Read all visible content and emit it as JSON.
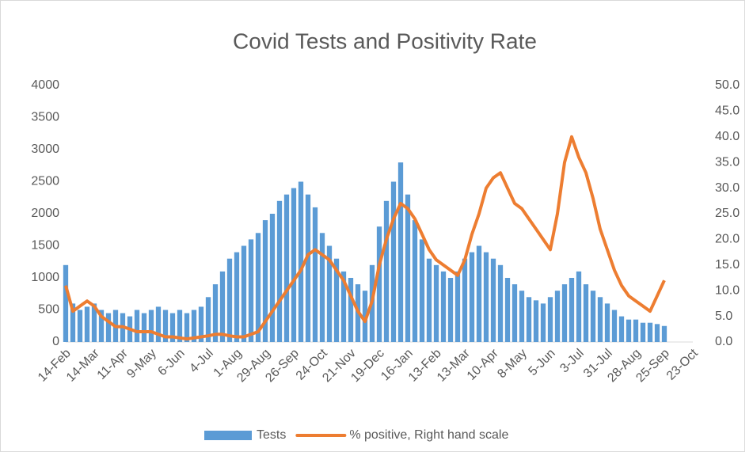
{
  "chart_data": {
    "type": "bar-line",
    "title": "Covid Tests and Positivity Rate",
    "categories": [
      "14-Feb",
      null,
      null,
      null,
      "14-Mar",
      null,
      null,
      null,
      "11-Apr",
      null,
      null,
      null,
      "9-May",
      null,
      null,
      null,
      "6-Jun",
      null,
      null,
      null,
      "4-Jul",
      null,
      null,
      null,
      "1-Aug",
      null,
      null,
      null,
      "29-Aug",
      null,
      null,
      null,
      "26-Sep",
      null,
      null,
      null,
      "24-Oct",
      null,
      null,
      null,
      "21-Nov",
      null,
      null,
      null,
      "19-Dec",
      null,
      null,
      null,
      "16-Jan",
      null,
      null,
      null,
      "13-Feb",
      null,
      null,
      null,
      "13-Mar",
      null,
      null,
      null,
      "10-Apr",
      null,
      null,
      null,
      "8-May",
      null,
      null,
      null,
      "5-Jun",
      null,
      null,
      null,
      "3-Jul",
      null,
      null,
      null,
      "31-Jul",
      null,
      null,
      null,
      "28-Aug",
      null,
      null,
      null,
      "25-Sep",
      null,
      null,
      null,
      "23-Oct"
    ],
    "series": [
      {
        "name": "Tests",
        "type": "bar",
        "color": "#5b9bd5",
        "values": [
          1200,
          600,
          500,
          550,
          600,
          500,
          450,
          500,
          450,
          400,
          500,
          450,
          500,
          550,
          500,
          450,
          500,
          450,
          500,
          550,
          700,
          900,
          1100,
          1300,
          1400,
          1500,
          1600,
          1700,
          1900,
          2000,
          2200,
          2300,
          2400,
          2500,
          2300,
          2100,
          1700,
          1500,
          1300,
          1100,
          1000,
          900,
          800,
          1200,
          1800,
          2200,
          2500,
          2800,
          2300,
          1900,
          1600,
          1300,
          1200,
          1100,
          1000,
          1100,
          1300,
          1400,
          1500,
          1400,
          1300,
          1200,
          1000,
          900,
          800,
          700,
          650,
          600,
          700,
          800,
          900,
          1000,
          1100,
          900,
          800,
          700,
          600,
          500,
          400,
          350,
          350,
          300,
          300,
          280,
          250,
          null,
          null,
          null,
          null
        ]
      },
      {
        "name": "% positive, Right hand scale",
        "type": "line",
        "axis": "y2",
        "color": "#ed7d31",
        "values": [
          11,
          6,
          7,
          8,
          7,
          5,
          4,
          3,
          3,
          2.5,
          2,
          2,
          2,
          1.5,
          1,
          1,
          0.8,
          0.6,
          0.8,
          1,
          1.2,
          1.5,
          1.5,
          1.2,
          1,
          1,
          1.5,
          2,
          4,
          6,
          8,
          10,
          12,
          14,
          17,
          18,
          17,
          16,
          14,
          12,
          9,
          6,
          4,
          8,
          15,
          20,
          24,
          27,
          26,
          24,
          21,
          18,
          16,
          15,
          14,
          13,
          16,
          21,
          25,
          30,
          32,
          33,
          30,
          27,
          26,
          24,
          22,
          20,
          18,
          25,
          35,
          40,
          36,
          33,
          28,
          22,
          18,
          14,
          11,
          9,
          8,
          7,
          6,
          9,
          12,
          null,
          null,
          null,
          null
        ]
      }
    ],
    "ylim": [
      0,
      4000
    ],
    "yticks": [
      0,
      500,
      1000,
      1500,
      2000,
      2500,
      3000,
      3500,
      4000
    ],
    "y2lim": [
      0,
      50
    ],
    "y2ticks": [
      {
        "value": 0,
        "label": "0.0"
      },
      {
        "value": 5,
        "label": "5.0"
      },
      {
        "value": 10,
        "label": "10.0"
      },
      {
        "value": 15,
        "label": "15.0"
      },
      {
        "value": 20,
        "label": "20.0"
      },
      {
        "value": 25,
        "label": "25.0"
      },
      {
        "value": 30,
        "label": "30.0"
      },
      {
        "value": 35,
        "label": "35.0"
      },
      {
        "value": 40,
        "label": "40.0"
      },
      {
        "value": 45,
        "label": "45.0"
      },
      {
        "value": 50,
        "label": "50.0"
      }
    ],
    "legend": "bottom",
    "grid": false
  }
}
